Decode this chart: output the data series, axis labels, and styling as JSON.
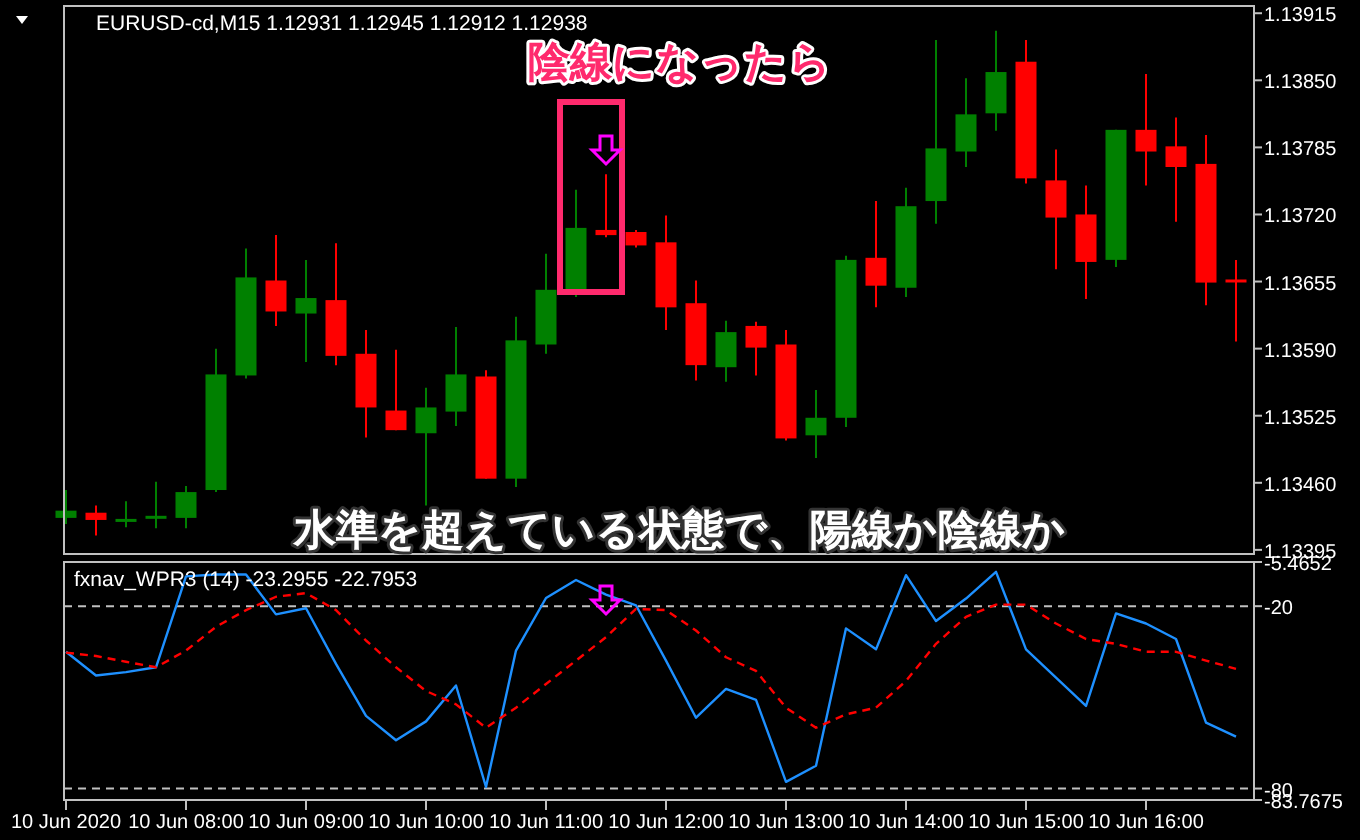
{
  "chart_data": [
    {
      "type": "candlestick",
      "title": "EURUSD-cd,M15  1.12931 1.12945 1.12912 1.12938",
      "x": [
        "2020-06-10T07:00",
        "2020-06-10T07:15",
        "2020-06-10T07:30",
        "2020-06-10T07:45",
        "2020-06-10T08:00",
        "2020-06-10T08:15",
        "2020-06-10T08:30",
        "2020-06-10T08:45",
        "2020-06-10T09:00",
        "2020-06-10T09:15",
        "2020-06-10T09:30",
        "2020-06-10T09:45",
        "2020-06-10T10:00",
        "2020-06-10T10:15",
        "2020-06-10T10:30",
        "2020-06-10T10:45",
        "2020-06-10T11:00",
        "2020-06-10T11:15",
        "2020-06-10T11:30",
        "2020-06-10T11:45",
        "2020-06-10T12:00",
        "2020-06-10T12:15",
        "2020-06-10T12:30",
        "2020-06-10T12:45",
        "2020-06-10T13:00",
        "2020-06-10T13:15",
        "2020-06-10T13:30",
        "2020-06-10T13:45",
        "2020-06-10T14:00",
        "2020-06-10T14:15",
        "2020-06-10T14:30",
        "2020-06-10T14:45",
        "2020-06-10T15:00",
        "2020-06-10T15:15",
        "2020-06-10T15:30",
        "2020-06-10T15:45",
        "2020-06-10T16:00",
        "2020-06-10T16:15",
        "2020-06-10T16:30",
        "2020-06-10T16:45"
      ],
      "ohlc": [
        [
          1.13426,
          1.13453,
          1.1342,
          1.13433
        ],
        [
          1.13431,
          1.13438,
          1.13409,
          1.13424
        ],
        [
          1.13424,
          1.13442,
          1.13417,
          1.13425
        ],
        [
          1.13426,
          1.13461,
          1.13416,
          1.13428
        ],
        [
          1.13426,
          1.13457,
          1.13416,
          1.13451
        ],
        [
          1.13453,
          1.1359,
          1.13451,
          1.13565
        ],
        [
          1.13564,
          1.13687,
          1.13561,
          1.13659
        ],
        [
          1.13656,
          1.137,
          1.13612,
          1.13626
        ],
        [
          1.13624,
          1.13676,
          1.13577,
          1.13639
        ],
        [
          1.13637,
          1.13692,
          1.13574,
          1.13583
        ],
        [
          1.13585,
          1.13608,
          1.13504,
          1.13533
        ],
        [
          1.1353,
          1.13589,
          1.13511,
          1.13511
        ],
        [
          1.13508,
          1.13552,
          1.13438,
          1.13533
        ],
        [
          1.13529,
          1.13611,
          1.13515,
          1.13565
        ],
        [
          1.13563,
          1.13569,
          1.13464,
          1.13464
        ],
        [
          1.13464,
          1.13621,
          1.13456,
          1.13598
        ],
        [
          1.13594,
          1.13682,
          1.13585,
          1.13647
        ],
        [
          1.13645,
          1.13744,
          1.1364,
          1.13707
        ],
        [
          1.13705,
          1.13759,
          1.13698,
          1.137
        ],
        [
          1.13703,
          1.13705,
          1.13688,
          1.1369
        ],
        [
          1.13693,
          1.13719,
          1.13608,
          1.1363
        ],
        [
          1.13634,
          1.13656,
          1.13559,
          1.13574
        ],
        [
          1.13572,
          1.13617,
          1.13558,
          1.13606
        ],
        [
          1.13612,
          1.13616,
          1.13564,
          1.13591
        ],
        [
          1.13594,
          1.13608,
          1.13501,
          1.13503
        ],
        [
          1.13506,
          1.1355,
          1.13484,
          1.13523
        ],
        [
          1.13523,
          1.1368,
          1.13514,
          1.13676
        ],
        [
          1.13678,
          1.13733,
          1.1363,
          1.13651
        ],
        [
          1.13649,
          1.13746,
          1.1364,
          1.13728
        ],
        [
          1.13733,
          1.13889,
          1.13711,
          1.13784
        ],
        [
          1.13781,
          1.13852,
          1.13766,
          1.13817
        ],
        [
          1.13818,
          1.13898,
          1.13801,
          1.13858
        ],
        [
          1.13868,
          1.13889,
          1.1375,
          1.13755
        ],
        [
          1.13753,
          1.13783,
          1.13667,
          1.13717
        ],
        [
          1.1372,
          1.13748,
          1.13638,
          1.13674
        ],
        [
          1.13676,
          1.13802,
          1.13669,
          1.13802
        ],
        [
          1.13802,
          1.13856,
          1.13748,
          1.13781
        ],
        [
          1.13786,
          1.13814,
          1.13713,
          1.13766
        ],
        [
          1.13769,
          1.13797,
          1.13632,
          1.13654
        ],
        [
          1.13657,
          1.13676,
          1.13597,
          1.13656
        ]
      ],
      "colors": [
        "#008000",
        "#ff0000",
        "#008000",
        "#008000",
        "#008000",
        "#008000",
        "#008000",
        "#ff0000",
        "#008000",
        "#ff0000",
        "#ff0000",
        "#ff0000",
        "#008000",
        "#008000",
        "#ff0000",
        "#008000",
        "#008000",
        "#008000",
        "#ff0000",
        "#ff0000",
        "#ff0000",
        "#ff0000",
        "#008000",
        "#ff0000",
        "#ff0000",
        "#008000",
        "#008000",
        "#ff0000",
        "#008000",
        "#008000",
        "#008000",
        "#008000",
        "#ff0000",
        "#ff0000",
        "#ff0000",
        "#008000",
        "#ff0000",
        "#ff0000",
        "#ff0000",
        "#ff0000"
      ],
      "xlim": [
        "2020-06-10T06:59",
        "2020-06-10T16:54"
      ],
      "ylim": [
        1.13391,
        1.13922
      ],
      "yticks": [
        1.13915,
        {
          "value": 1.1385,
          "label": "1.13850"
        },
        1.13785,
        {
          "value": 1.1372,
          "label": "1.13720"
        },
        1.13655,
        {
          "value": 1.1359,
          "label": "1.13590"
        },
        1.13525,
        {
          "value": 1.1346,
          "label": "1.13460"
        },
        1.13395
      ],
      "tick_labels": "y",
      "annotations": [
        "陰線になったら",
        "水準を超えている状態で、陽線か陰線か"
      ]
    },
    {
      "type": "line",
      "title": "fxnav_WPR3 (14) -23.2955 -22.7953",
      "x": [
        "2020-06-10T07:00",
        "2020-06-10T07:15",
        "2020-06-10T07:30",
        "2020-06-10T07:45",
        "2020-06-10T08:00",
        "2020-06-10T08:15",
        "2020-06-10T08:30",
        "2020-06-10T08:45",
        "2020-06-10T09:00",
        "2020-06-10T09:15",
        "2020-06-10T09:30",
        "2020-06-10T09:45",
        "2020-06-10T10:00",
        "2020-06-10T10:15",
        "2020-06-10T10:30",
        "2020-06-10T10:45",
        "2020-06-10T11:00",
        "2020-06-10T11:15",
        "2020-06-10T11:30",
        "2020-06-10T11:45",
        "2020-06-10T12:00",
        "2020-06-10T12:15",
        "2020-06-10T12:30",
        "2020-06-10T12:45",
        "2020-06-10T13:00",
        "2020-06-10T13:15",
        "2020-06-10T13:30",
        "2020-06-10T13:45",
        "2020-06-10T14:00",
        "2020-06-10T14:15",
        "2020-06-10T14:30",
        "2020-06-10T14:45",
        "2020-06-10T15:00",
        "2020-06-10T15:15",
        "2020-06-10T15:30",
        "2020-06-10T15:45",
        "2020-06-10T16:00",
        "2020-06-10T16:15",
        "2020-06-10T16:30",
        "2020-06-10T16:45"
      ],
      "series": [
        {
          "color": "#1e90ff",
          "line_style": "solid",
          "values": [
            -35.0,
            -42.8,
            -41.7,
            -40.1,
            -10.2,
            -9.6,
            -9.6,
            -22.7,
            -20.7,
            -39.0,
            -56.1,
            -64.1,
            -57.9,
            -46.1,
            -79.5,
            -34.6,
            -17.3,
            -11.4,
            -16.2,
            -19.7,
            -37.9,
            -56.7,
            -47.2,
            -50.8,
            -77.8,
            -72.5,
            -27.3,
            -34.2,
            -9.8,
            -24.9,
            -17.5,
            -8.7,
            -34.2,
            -43.5,
            -52.8,
            -22.4,
            -25.7,
            -30.8,
            -58.3,
            -62.9
          ]
        },
        {
          "color": "#ff0000",
          "line_style": "dashed",
          "values": [
            -35.3,
            -36.4,
            -38.3,
            -40.1,
            -34.6,
            -26.8,
            -21.3,
            -16.9,
            -15.7,
            -21.3,
            -31.3,
            -40.1,
            -47.9,
            -52.3,
            -60.0,
            -53.4,
            -45.6,
            -37.9,
            -30.2,
            -20.9,
            -21.3,
            -28.0,
            -36.8,
            -41.3,
            -53.4,
            -60.0,
            -55.6,
            -53.4,
            -44.6,
            -32.4,
            -23.5,
            -19.5,
            -19.5,
            -25.7,
            -30.8,
            -32.4,
            -35.0,
            -35.0,
            -37.9,
            -40.6
          ]
        }
      ],
      "xlim": [
        "2020-06-10T06:59",
        "2020-06-10T16:54"
      ],
      "xticks": [
        {
          "value": "2020-06-10T07:00",
          "label": "10 Jun 2020"
        },
        {
          "value": "2020-06-10T08:00",
          "label": "10 Jun 08:00"
        },
        {
          "value": "2020-06-10T09:00",
          "label": "10 Jun 09:00"
        },
        {
          "value": "2020-06-10T10:00",
          "label": "10 Jun 10:00"
        },
        {
          "value": "2020-06-10T11:00",
          "label": "10 Jun 11:00"
        },
        {
          "value": "2020-06-10T12:00",
          "label": "10 Jun 12:00"
        },
        {
          "value": "2020-06-10T13:00",
          "label": "10 Jun 13:00"
        },
        {
          "value": "2020-06-10T14:00",
          "label": "10 Jun 14:00"
        },
        {
          "value": "2020-06-10T15:00",
          "label": "10 Jun 15:00"
        },
        {
          "value": "2020-06-10T16:00",
          "label": "10 Jun 16:00"
        }
      ],
      "ylim": [
        -83.7675,
        -5.4652
      ],
      "yticks": [
        -5.4652,
        -20,
        -80,
        -83.7675
      ],
      "ref_lines": [
        {
          "axis": "y",
          "value": -20,
          "color": "#c0c0c0",
          "line_style": "dashed"
        },
        {
          "axis": "y",
          "value": -80,
          "color": "#c0c0c0",
          "line_style": "dashed"
        }
      ]
    }
  ]
}
